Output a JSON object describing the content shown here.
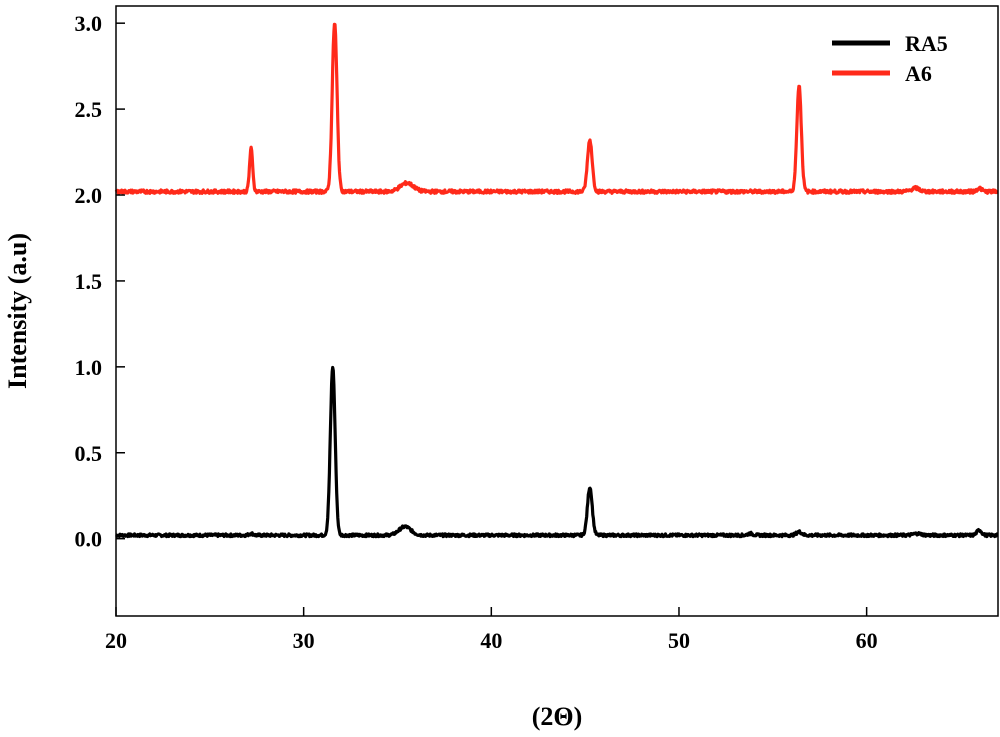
{
  "chart_data": {
    "type": "line",
    "title": "",
    "xlabel": "(2Θ)",
    "ylabel": "Intensity (a.u)",
    "xlim": [
      20,
      67
    ],
    "ylim": [
      -0.45,
      3.1
    ],
    "x_ticks": [
      20,
      30,
      40,
      50,
      60
    ],
    "x_tick_labels": [
      "20",
      "30",
      "40",
      "50",
      "60"
    ],
    "y_ticks": [
      0.0,
      0.5,
      1.0,
      1.5,
      2.0,
      2.5,
      3.0
    ],
    "y_tick_labels": [
      "0.0",
      "0.5",
      "1.0",
      "1.5",
      "2.0",
      "2.5",
      "3.0"
    ],
    "grid": false,
    "legend_position": "top-right",
    "series": [
      {
        "name": "RA5",
        "color": "#000000",
        "baseline": 0.02,
        "noise": 0.008,
        "peaks": [
          {
            "x": 27.2,
            "y": 0.03,
            "w": 0.15
          },
          {
            "x": 31.55,
            "y": 1.0,
            "w": 0.18
          },
          {
            "x": 35.4,
            "y": 0.07,
            "w": 0.45
          },
          {
            "x": 45.25,
            "y": 0.3,
            "w": 0.18
          },
          {
            "x": 53.8,
            "y": 0.03,
            "w": 0.2
          },
          {
            "x": 56.4,
            "y": 0.04,
            "w": 0.2
          },
          {
            "x": 62.7,
            "y": 0.03,
            "w": 0.3
          },
          {
            "x": 66.0,
            "y": 0.05,
            "w": 0.18
          }
        ]
      },
      {
        "name": "A6",
        "color": "#ff2a1a",
        "baseline": 2.02,
        "noise": 0.01,
        "peaks": [
          {
            "x": 27.2,
            "y": 2.27,
            "w": 0.12
          },
          {
            "x": 31.65,
            "y": 3.0,
            "w": 0.18
          },
          {
            "x": 35.5,
            "y": 2.07,
            "w": 0.5
          },
          {
            "x": 45.25,
            "y": 2.32,
            "w": 0.18
          },
          {
            "x": 56.4,
            "y": 2.64,
            "w": 0.17
          },
          {
            "x": 62.6,
            "y": 2.04,
            "w": 0.3
          },
          {
            "x": 66.0,
            "y": 2.04,
            "w": 0.18
          }
        ]
      }
    ]
  }
}
